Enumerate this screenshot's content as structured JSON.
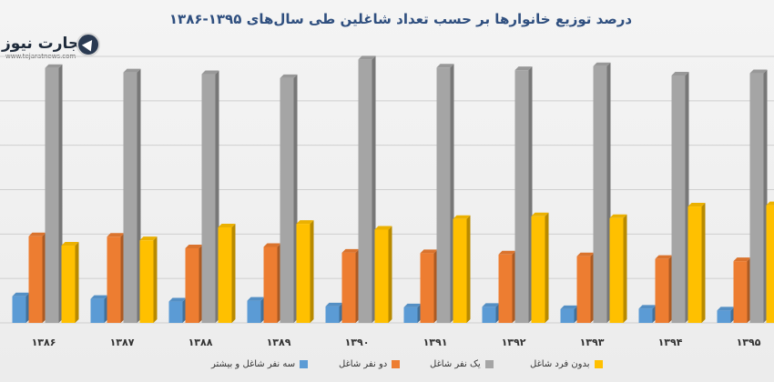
{
  "title": "درصد توزیع خانوارها بر حسب تعداد شاغلین طی سال‌های ۱۳۹۵-۱۳۸۶",
  "logo": {
    "name": "تجارت نیوز",
    "url": "www.tejaratnews.com"
  },
  "colors": {
    "background": "#eeeeee",
    "grid": "#cfcfcf"
  },
  "chart_data": {
    "type": "bar",
    "categories": [
      "۱۳۸۶",
      "۱۳۸۷",
      "۱۳۸۸",
      "۱۳۸۹",
      "۱۳۹۰",
      "۱۳۹۱",
      "۱۳۹۲",
      "۱۳۹۳",
      "۱۳۹۴",
      "۱۳۹۵"
    ],
    "ylim": [
      0,
      60
    ],
    "grid": true,
    "legend_position": "bottom",
    "series": [
      {
        "name": "سه نفر شاغل و بیشتر",
        "color": "#5b9bd5",
        "values": [
          6,
          5.4,
          4.8,
          5,
          3.7,
          3.5,
          3.6,
          3.1,
          3.2,
          2.8
        ]
      },
      {
        "name": "دو نفر شاغل",
        "color": "#ed7d31",
        "values": [
          19.5,
          19.4,
          16.8,
          17.1,
          15.8,
          15.7,
          15.4,
          15,
          14.4,
          13.9
        ]
      },
      {
        "name": "یک نفر شاغل",
        "color": "#a5a5a5",
        "values": [
          57.4,
          56.4,
          56,
          55.1,
          59.3,
          57.5,
          56.9,
          57.8,
          55.7,
          56.2
        ]
      },
      {
        "name": "بدون فرد شاغل",
        "color": "#ffc000",
        "values": [
          17.4,
          18.6,
          21.5,
          22.3,
          21,
          23.4,
          24,
          23.6,
          26.2,
          26.5
        ]
      }
    ]
  }
}
